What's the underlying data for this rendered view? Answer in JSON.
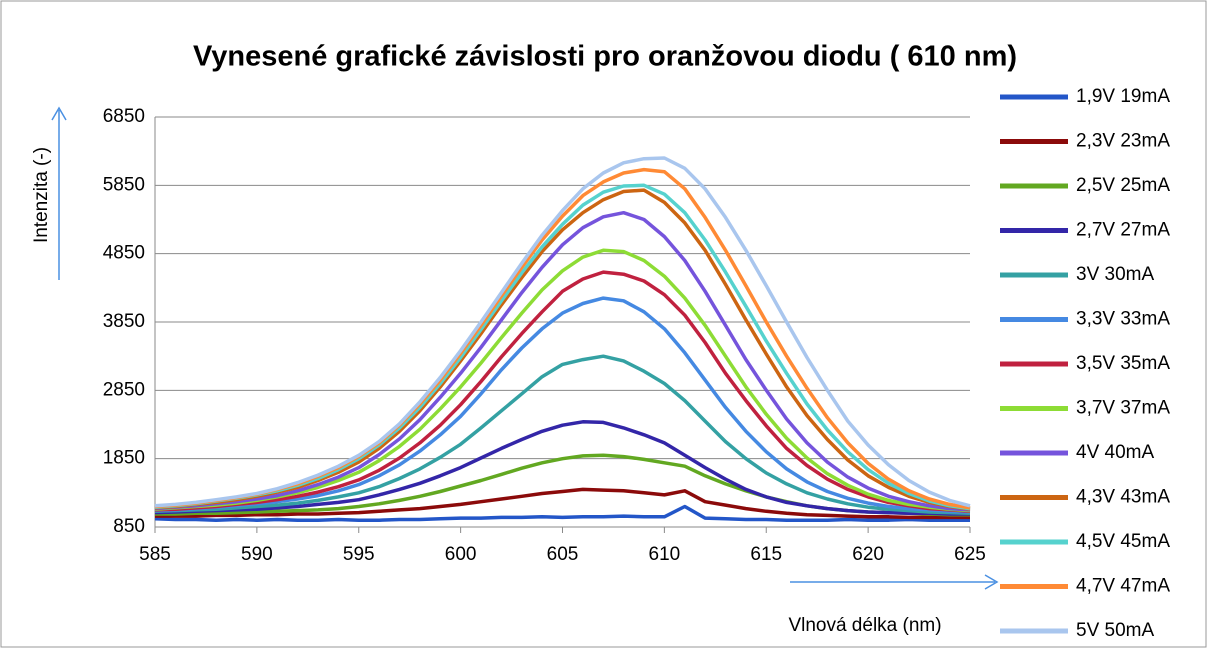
{
  "chart_data": {
    "type": "line",
    "title": "Vynesené grafické závislosti pro oranžovou diodu ( 610 nm)",
    "xlabel": "Vlnová délka (nm)",
    "ylabel": "Intenzita (-)",
    "x": [
      585,
      586,
      587,
      588,
      589,
      590,
      591,
      592,
      593,
      594,
      595,
      596,
      597,
      598,
      599,
      600,
      601,
      602,
      603,
      604,
      605,
      606,
      607,
      608,
      609,
      610,
      611,
      612,
      613,
      614,
      615,
      616,
      617,
      618,
      619,
      620,
      621,
      622,
      623,
      624,
      625
    ],
    "xlim": [
      585,
      625
    ],
    "xticks": [
      585,
      590,
      595,
      600,
      605,
      610,
      615,
      620,
      625
    ],
    "ylim": [
      850,
      6850
    ],
    "yticks": [
      850,
      1850,
      2850,
      3850,
      4850,
      5850,
      6850
    ],
    "grid": true,
    "legend": "right",
    "series": [
      {
        "name": "1,9V 19mA",
        "color": "#2356c8",
        "values": [
          970,
          960,
          960,
          950,
          960,
          950,
          960,
          950,
          950,
          960,
          950,
          950,
          960,
          960,
          970,
          980,
          980,
          990,
          990,
          1000,
          990,
          1000,
          1000,
          1010,
          1000,
          1000,
          1150,
          980,
          970,
          960,
          960,
          950,
          950,
          950,
          960,
          950,
          950,
          960,
          950,
          950,
          950
        ]
      },
      {
        "name": "2,3V 23mA",
        "color": "#8b0a0a",
        "values": [
          1010,
          1010,
          1010,
          1020,
          1020,
          1030,
          1030,
          1040,
          1040,
          1050,
          1060,
          1080,
          1100,
          1120,
          1150,
          1180,
          1220,
          1260,
          1300,
          1340,
          1370,
          1400,
          1390,
          1380,
          1350,
          1320,
          1380,
          1220,
          1170,
          1120,
          1080,
          1050,
          1030,
          1020,
          1010,
          1000,
          1000,
          990,
          990,
          990,
          990
        ]
      },
      {
        "name": "2,5V 25mA",
        "color": "#62a821",
        "values": [
          1040,
          1040,
          1050,
          1050,
          1060,
          1070,
          1080,
          1090,
          1100,
          1120,
          1150,
          1190,
          1240,
          1300,
          1370,
          1450,
          1530,
          1620,
          1710,
          1790,
          1850,
          1890,
          1900,
          1880,
          1840,
          1790,
          1740,
          1600,
          1480,
          1380,
          1290,
          1220,
          1160,
          1120,
          1090,
          1070,
          1060,
          1050,
          1040,
          1030,
          1030
        ]
      },
      {
        "name": "2,7V 27mA",
        "color": "#3326a8",
        "values": [
          1060,
          1070,
          1080,
          1090,
          1100,
          1110,
          1130,
          1150,
          1180,
          1210,
          1250,
          1320,
          1400,
          1490,
          1600,
          1720,
          1860,
          2000,
          2130,
          2250,
          2340,
          2390,
          2380,
          2300,
          2200,
          2080,
          1900,
          1720,
          1550,
          1400,
          1290,
          1210,
          1160,
          1120,
          1090,
          1070,
          1060,
          1050,
          1050,
          1040,
          1040
        ]
      },
      {
        "name": "3V 30mA",
        "color": "#34a1a3",
        "values": [
          1080,
          1090,
          1100,
          1110,
          1130,
          1150,
          1170,
          1200,
          1240,
          1290,
          1350,
          1440,
          1560,
          1700,
          1870,
          2060,
          2300,
          2550,
          2800,
          3050,
          3230,
          3300,
          3350,
          3280,
          3130,
          2950,
          2700,
          2400,
          2100,
          1850,
          1640,
          1480,
          1350,
          1260,
          1190,
          1140,
          1110,
          1090,
          1070,
          1060,
          1050
        ]
      },
      {
        "name": "3,3V 33mA",
        "color": "#4589e2",
        "values": [
          1090,
          1100,
          1120,
          1140,
          1160,
          1190,
          1220,
          1260,
          1310,
          1380,
          1470,
          1600,
          1760,
          1960,
          2200,
          2470,
          2800,
          3150,
          3470,
          3750,
          3980,
          4120,
          4200,
          4160,
          4000,
          3750,
          3400,
          3000,
          2600,
          2250,
          1950,
          1700,
          1510,
          1370,
          1270,
          1200,
          1150,
          1120,
          1100,
          1080,
          1070
        ]
      },
      {
        "name": "3,5V 35mA",
        "color": "#c0213f",
        "values": [
          1100,
          1110,
          1130,
          1150,
          1180,
          1210,
          1250,
          1300,
          1360,
          1440,
          1540,
          1680,
          1860,
          2080,
          2340,
          2640,
          2980,
          3340,
          3680,
          4000,
          4300,
          4480,
          4580,
          4550,
          4450,
          4250,
          3950,
          3550,
          3100,
          2700,
          2330,
          2000,
          1750,
          1550,
          1400,
          1290,
          1210,
          1160,
          1120,
          1100,
          1080
        ]
      },
      {
        "name": "3,7V 37mA",
        "color": "#8ddc35",
        "values": [
          1110,
          1130,
          1150,
          1170,
          1200,
          1240,
          1290,
          1350,
          1430,
          1530,
          1650,
          1820,
          2030,
          2280,
          2580,
          2900,
          3250,
          3620,
          3980,
          4320,
          4600,
          4800,
          4900,
          4880,
          4750,
          4520,
          4200,
          3800,
          3350,
          2900,
          2500,
          2150,
          1860,
          1630,
          1460,
          1330,
          1240,
          1180,
          1140,
          1110,
          1090
        ]
      },
      {
        "name": "4V 40mA",
        "color": "#7554dc",
        "values": [
          1120,
          1140,
          1160,
          1190,
          1220,
          1260,
          1310,
          1380,
          1470,
          1580,
          1720,
          1910,
          2140,
          2420,
          2750,
          3100,
          3480,
          3880,
          4280,
          4650,
          4980,
          5230,
          5390,
          5450,
          5350,
          5100,
          4750,
          4300,
          3800,
          3300,
          2850,
          2430,
          2080,
          1800,
          1580,
          1420,
          1300,
          1220,
          1160,
          1120,
          1100
        ]
      },
      {
        "name": "4,3V 43mA",
        "color": "#cc6512",
        "values": [
          1130,
          1150,
          1180,
          1210,
          1250,
          1300,
          1360,
          1430,
          1530,
          1650,
          1800,
          2000,
          2250,
          2550,
          2900,
          3280,
          3680,
          4100,
          4500,
          4880,
          5200,
          5450,
          5640,
          5760,
          5780,
          5600,
          5300,
          4900,
          4400,
          3880,
          3380,
          2900,
          2480,
          2130,
          1830,
          1600,
          1430,
          1300,
          1210,
          1150,
          1110
        ]
      },
      {
        "name": "4,5V 45mA",
        "color": "#56d2ce",
        "values": [
          1140,
          1160,
          1190,
          1230,
          1270,
          1320,
          1380,
          1460,
          1560,
          1690,
          1850,
          2050,
          2300,
          2600,
          2950,
          3330,
          3740,
          4160,
          4570,
          4950,
          5280,
          5560,
          5750,
          5840,
          5850,
          5720,
          5450,
          5050,
          4580,
          4080,
          3570,
          3100,
          2650,
          2270,
          1950,
          1690,
          1490,
          1340,
          1230,
          1160,
          1120
        ]
      },
      {
        "name": "4,7V 47mA",
        "color": "#ff8a35",
        "values": [
          1150,
          1170,
          1200,
          1240,
          1280,
          1330,
          1400,
          1480,
          1590,
          1720,
          1880,
          2080,
          2340,
          2650,
          3000,
          3390,
          3800,
          4230,
          4650,
          5050,
          5400,
          5700,
          5900,
          6030,
          6080,
          6050,
          5800,
          5380,
          4900,
          4380,
          3850,
          3350,
          2880,
          2450,
          2080,
          1780,
          1550,
          1380,
          1260,
          1180,
          1130
        ]
      },
      {
        "name": "5V 50mA",
        "color": "#a9c6ee",
        "values": [
          1160,
          1180,
          1210,
          1250,
          1290,
          1340,
          1410,
          1500,
          1610,
          1740,
          1900,
          2100,
          2360,
          2680,
          3040,
          3430,
          3850,
          4280,
          4710,
          5120,
          5480,
          5800,
          6030,
          6180,
          6240,
          6250,
          6100,
          5800,
          5380,
          4900,
          4380,
          3850,
          3330,
          2850,
          2400,
          2050,
          1760,
          1530,
          1360,
          1240,
          1160
        ]
      }
    ]
  }
}
